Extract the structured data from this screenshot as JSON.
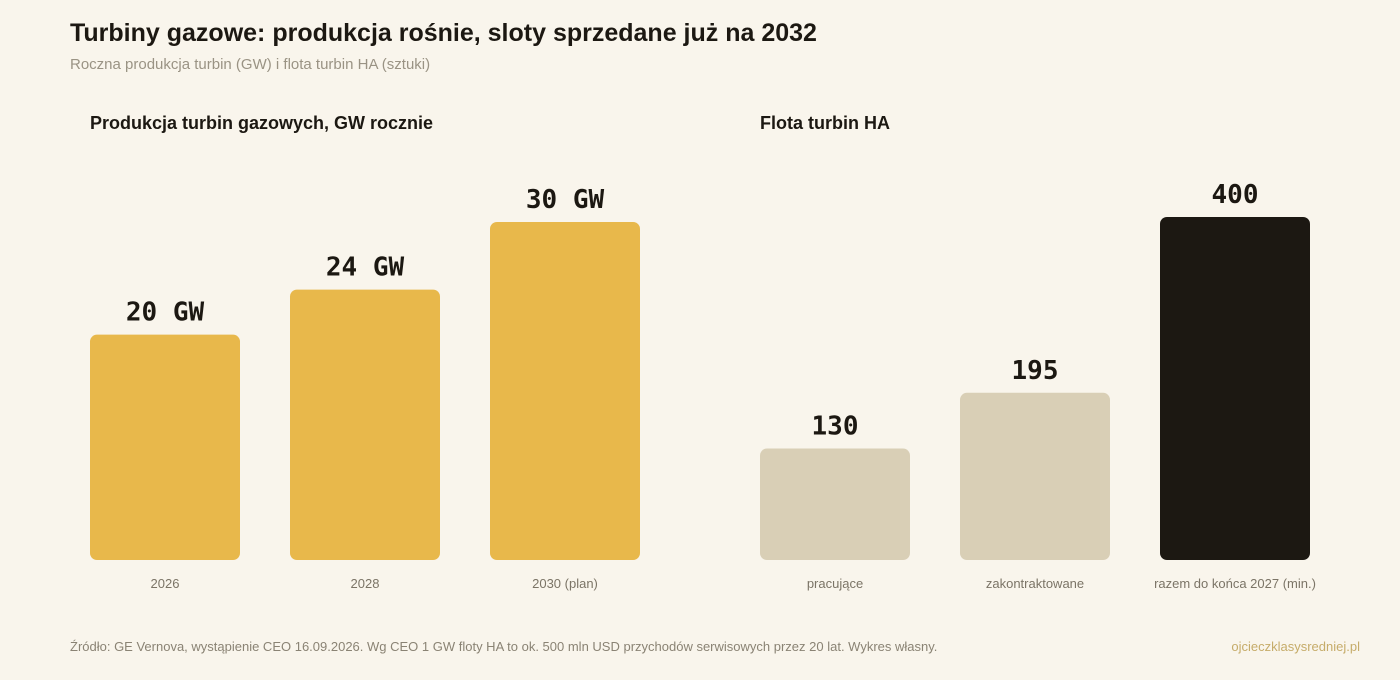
{
  "header": {
    "title": "Turbiny gazowe: produkcja rośnie, sloty sprzedane już na 2032",
    "subtitle": "Roczna produkcja turbin (GW) i flota turbin HA (sztuki)"
  },
  "chart_data": [
    {
      "type": "bar",
      "title": "Produkcja turbin gazowych, GW rocznie",
      "categories": [
        "2026",
        "2028",
        "2030 (plan)"
      ],
      "values": [
        20,
        24,
        30
      ],
      "value_labels": [
        "20 GW",
        "24 GW",
        "30 GW"
      ],
      "colors": [
        "#e8b84b",
        "#e8b84b",
        "#e8b84b"
      ],
      "ylim": [
        0,
        30
      ],
      "grid": false,
      "legend": "none"
    },
    {
      "type": "bar",
      "title": "Flota turbin HA",
      "categories": [
        "pracujące",
        "zakontraktowane",
        "razem do końca 2027 (min.)"
      ],
      "values": [
        130,
        195,
        400
      ],
      "value_labels": [
        "130",
        "195",
        "400"
      ],
      "colors": [
        "#d9cfb6",
        "#d9cfb6",
        "#1c1812"
      ],
      "ylim": [
        0,
        400
      ],
      "grid": false,
      "legend": "none"
    }
  ],
  "footer": {
    "source": "Źródło: GE Vernova, wystąpienie CEO 16.09.2026. Wg CEO 1 GW floty HA to ok. 500 mln USD przychodów serwisowych przez 20 lat. Wykres własny.",
    "brand": "ojcieczklasysredniej.pl"
  }
}
